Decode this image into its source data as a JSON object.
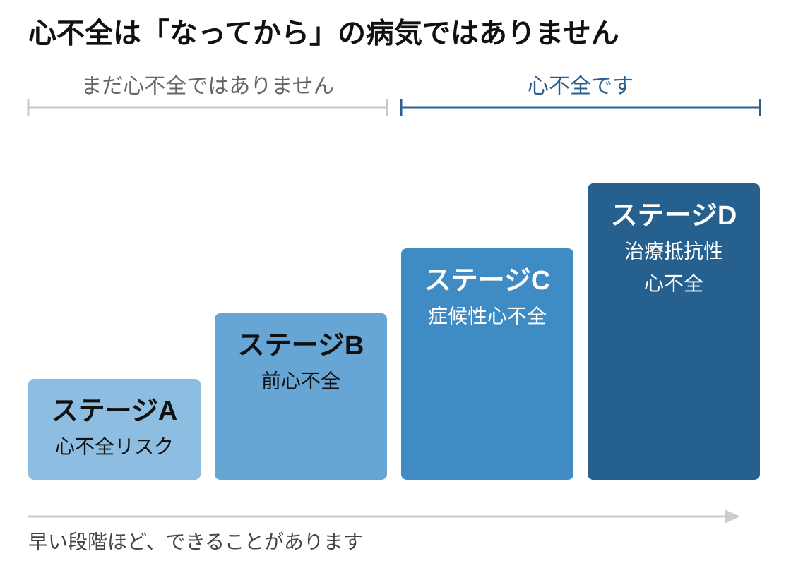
{
  "header": {
    "title": "心不全は「なってから」の病気ではありません"
  },
  "brackets": [
    {
      "label": "まだ心不全ではありません"
    },
    {
      "label": "心不全です"
    }
  ],
  "stages": [
    {
      "title": "ステージA",
      "lines": [
        "心不全リスク"
      ]
    },
    {
      "title": "ステージB",
      "lines": [
        "前心不全"
      ]
    },
    {
      "title": "ステージC",
      "lines": [
        "症候性心不全"
      ]
    },
    {
      "title": "ステージD",
      "lines": [
        "治療抵抗性",
        "心不全"
      ]
    }
  ],
  "footer": {
    "caption": "早い段階ほど、できることがあります"
  }
}
